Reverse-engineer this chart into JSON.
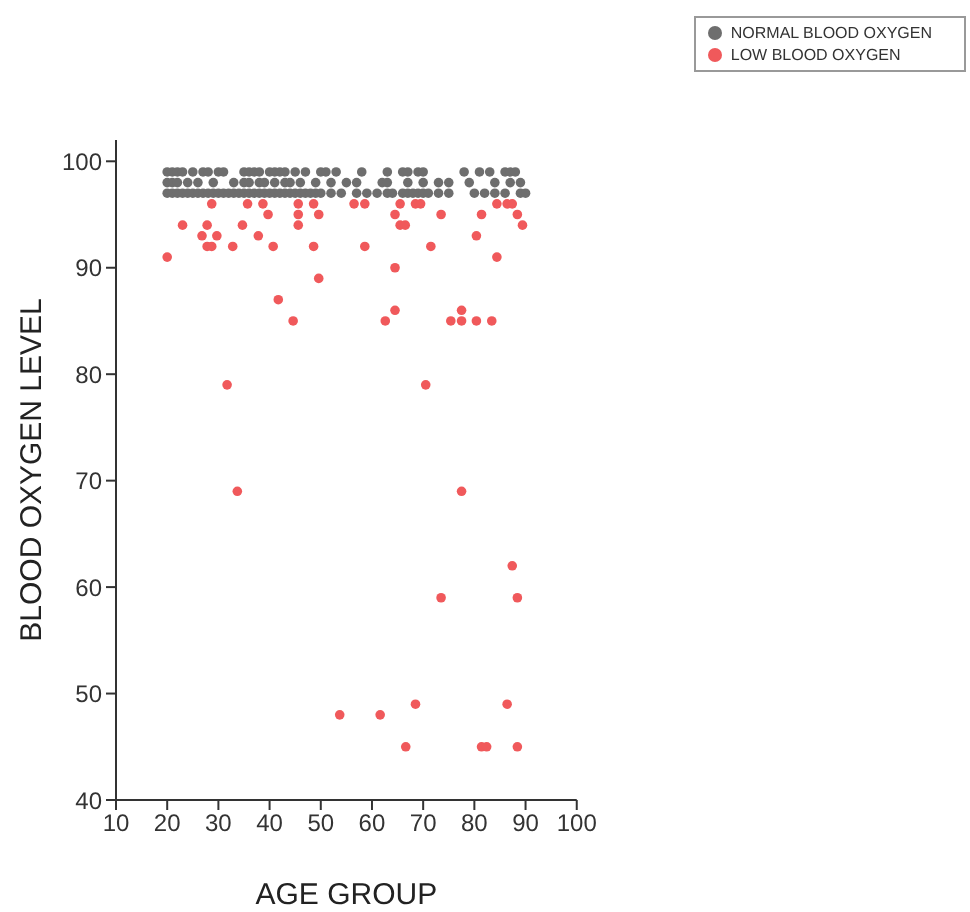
{
  "chart_data": {
    "type": "scatter",
    "xlabel": "AGE GROUP",
    "ylabel": "BLOOD OXYGEN LEVEL",
    "xlim": [
      10,
      100
    ],
    "xticks": [
      10,
      20,
      30,
      40,
      50,
      60,
      70,
      80,
      90,
      100
    ],
    "ylim": [
      40,
      102
    ],
    "yticks": [
      40,
      50,
      60,
      70,
      80,
      90,
      100
    ],
    "grid": false,
    "legend": "top right",
    "marker": "circle",
    "series": [
      {
        "name": "NORMAL BLOOD OXYGEN",
        "color": "#6e6e6e",
        "x": [
          20,
          21,
          22,
          23,
          25,
          27,
          28,
          30,
          31,
          35,
          36,
          37,
          38,
          40,
          41,
          42,
          43,
          45,
          47,
          50,
          51,
          53,
          58,
          63,
          66,
          67,
          69,
          70,
          78,
          81,
          83,
          86,
          87,
          88,
          20,
          21,
          22,
          24,
          26,
          29,
          33,
          35,
          36,
          38,
          39,
          41,
          43,
          44,
          46,
          49,
          52,
          55,
          57,
          62,
          63,
          67,
          70,
          73,
          75,
          79,
          84,
          87,
          89,
          20,
          21,
          22,
          23,
          24,
          25,
          26,
          27,
          28,
          29,
          30,
          31,
          32,
          33,
          34,
          35,
          36,
          37,
          38,
          39,
          40,
          41,
          42,
          43,
          44,
          45,
          46,
          47,
          48,
          49,
          50,
          52,
          54,
          57,
          59,
          61,
          63,
          64,
          66,
          67,
          68,
          69,
          70,
          71,
          73,
          75,
          80,
          82,
          84,
          86,
          89,
          90
        ],
        "values": [
          99,
          99,
          99,
          99,
          99,
          99,
          99,
          99,
          99,
          99,
          99,
          99,
          99,
          99,
          99,
          99,
          99,
          99,
          99,
          99,
          99,
          99,
          99,
          99,
          99,
          99,
          99,
          99,
          99,
          99,
          99,
          99,
          99,
          99,
          98,
          98,
          98,
          98,
          98,
          98,
          98,
          98,
          98,
          98,
          98,
          98,
          98,
          98,
          98,
          98,
          98,
          98,
          98,
          98,
          98,
          98,
          98,
          98,
          98,
          98,
          98,
          98,
          98,
          97,
          97,
          97,
          97,
          97,
          97,
          97,
          97,
          97,
          97,
          97,
          97,
          97,
          97,
          97,
          97,
          97,
          97,
          97,
          97,
          97,
          97,
          97,
          97,
          97,
          97,
          97,
          97,
          97,
          97,
          97,
          97,
          97,
          97,
          97,
          97,
          97,
          97,
          97,
          97,
          97,
          97,
          97,
          97,
          97,
          97,
          97,
          97,
          97,
          97,
          97,
          97
        ]
      },
      {
        "name": "LOW BLOOD OXYGEN",
        "color": "#f0595b",
        "x": [
          20,
          23,
          28.7,
          26.8,
          27.8,
          27.8,
          28.7,
          29.7,
          32.8,
          31.7,
          34.7,
          35.7,
          37.8,
          38.7,
          39.7,
          40.7,
          41.7,
          44.6,
          45.6,
          45.6,
          45.6,
          48.6,
          49.6,
          48.6,
          49.6,
          33.7,
          53.7,
          56.5,
          58.6,
          58.6,
          64.5,
          65.5,
          65.5,
          66.5,
          64.5,
          62.6,
          64.5,
          68.5,
          69.5,
          70.5,
          71.5,
          73.5,
          75.4,
          77.5,
          77.5,
          80.4,
          83.4,
          80.4,
          81.4,
          84.4,
          84.4,
          86.4,
          87.4,
          88.4,
          89.4,
          77.5,
          87.4,
          88.4,
          73.5,
          61.6,
          68.5,
          66.6,
          81.4,
          82.4,
          86.4,
          88.4
        ],
        "values": [
          91,
          94,
          96,
          93,
          94,
          92,
          92,
          93,
          92,
          79,
          94,
          96,
          93,
          96,
          95,
          92,
          87,
          85,
          96,
          95,
          94,
          96,
          95,
          92,
          89,
          69,
          48,
          96,
          96,
          92,
          95,
          96,
          94,
          94,
          90,
          85,
          86,
          96,
          96,
          79,
          92,
          95,
          85,
          86,
          85,
          85,
          85,
          93,
          95,
          96,
          91,
          96,
          96,
          95,
          94,
          69,
          62,
          59,
          59,
          48,
          49,
          45,
          45,
          45,
          49,
          45
        ]
      }
    ]
  }
}
